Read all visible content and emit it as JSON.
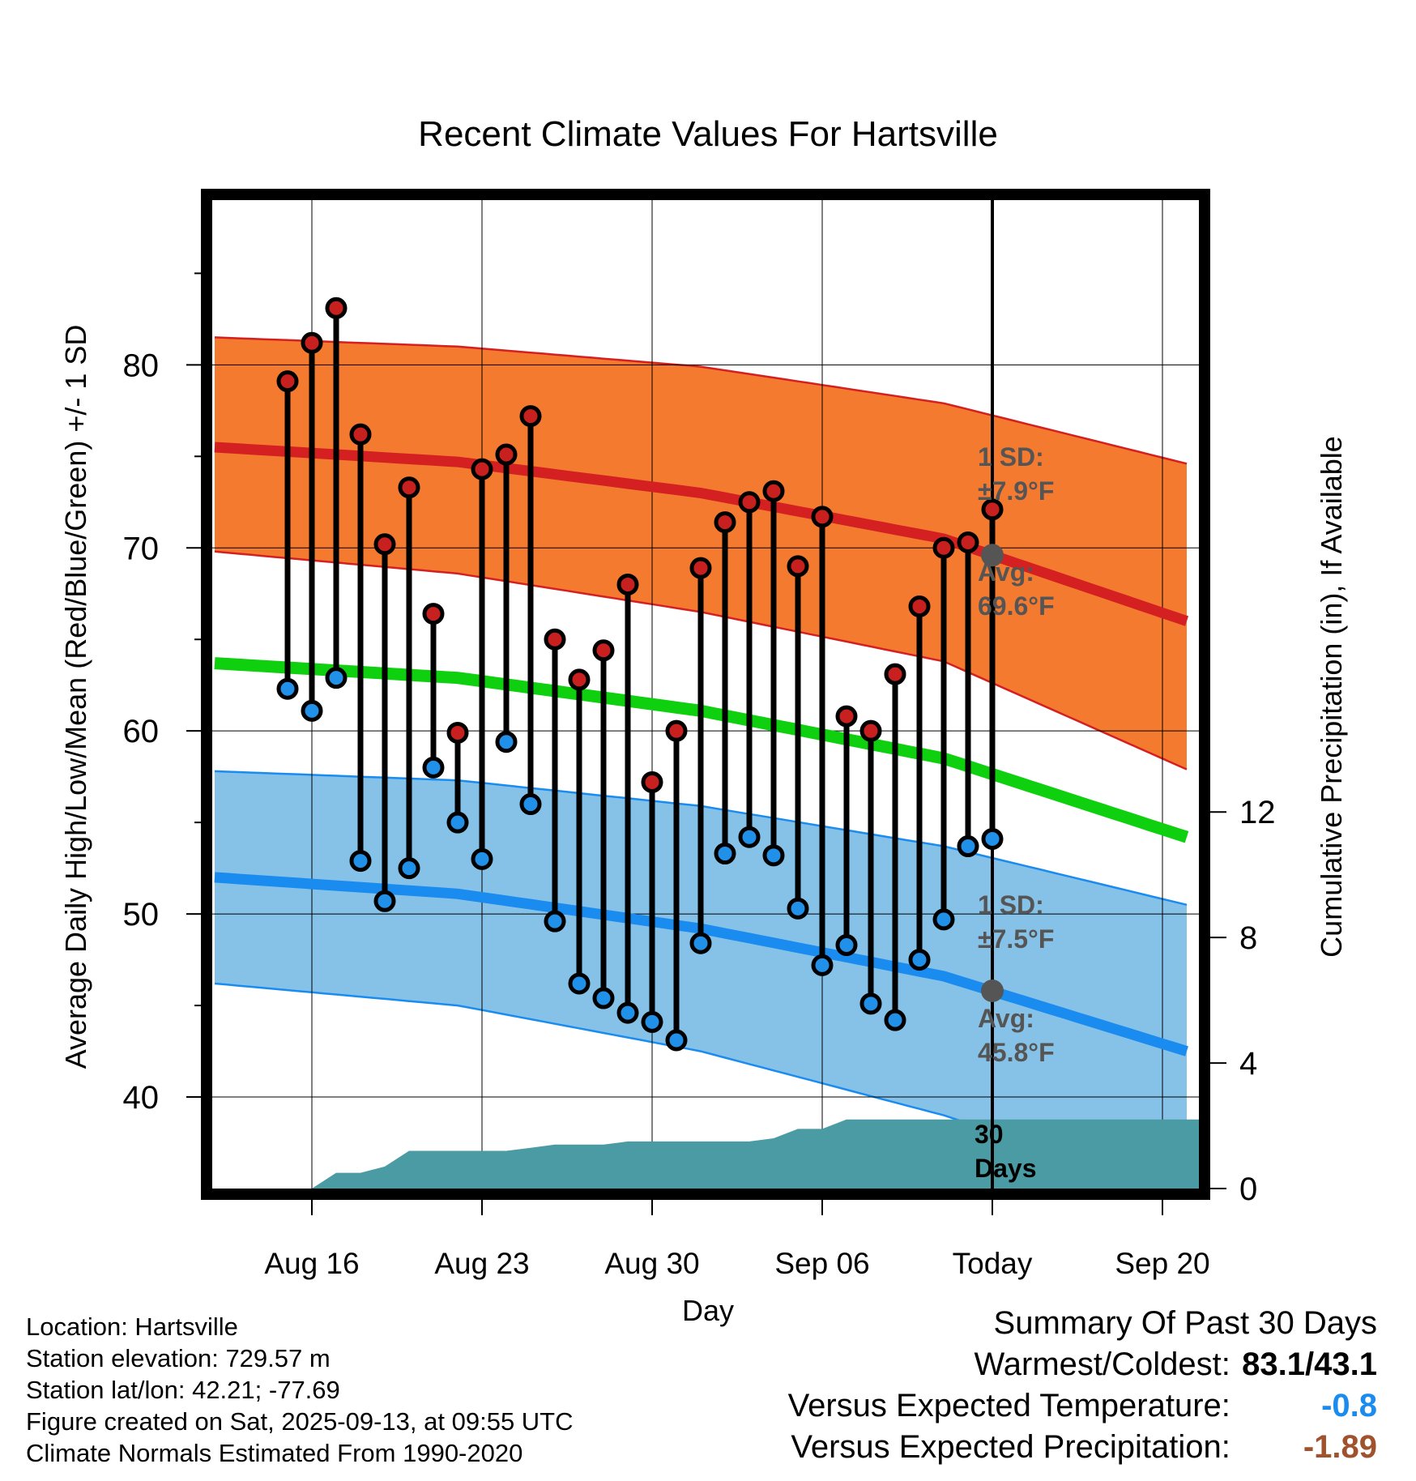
{
  "chart_data": {
    "type": "line",
    "title": "Recent Climate Values For Hartsville",
    "xlabel": "Day",
    "ylabel": "Average Daily High/Low/Mean (Red/Blue/Green) +/- 1 SD",
    "y2label": "Cumulative Precipitation (in), If Available",
    "ylim": [
      35,
      89
    ],
    "y2lim": [
      0,
      31.5
    ],
    "xlim": [
      -2.1,
      38.5
    ],
    "x_tick_positions": [
      2,
      9,
      16,
      23,
      30,
      37
    ],
    "x_tick_labels": [
      "Aug 16",
      "Aug 23",
      "Aug 30",
      "Sep 06",
      "Today",
      "Sep 20"
    ],
    "y_ticks": [
      40,
      50,
      60,
      70,
      80
    ],
    "y_minor_ticks": [
      45,
      55,
      65,
      75,
      85
    ],
    "y2_ticks": [
      0,
      4,
      8,
      12
    ],
    "today_index": 30,
    "days": [
      1,
      2,
      3,
      4,
      5,
      6,
      7,
      8,
      9,
      10,
      11,
      12,
      13,
      14,
      15,
      16,
      17,
      18,
      19,
      20,
      21,
      22,
      23,
      24,
      25,
      26,
      27,
      28,
      29,
      30
    ],
    "highs": [
      79.1,
      81.2,
      83.1,
      76.2,
      70.2,
      73.3,
      66.4,
      59.9,
      74.3,
      75.1,
      77.2,
      65.0,
      62.8,
      64.4,
      68.0,
      57.2,
      60.0,
      68.9,
      71.4,
      72.5,
      73.1,
      69.0,
      71.7,
      60.8,
      60.0,
      63.1,
      66.8,
      70.0,
      70.3,
      72.1
    ],
    "lows": [
      62.3,
      61.1,
      62.9,
      52.9,
      50.7,
      52.5,
      58.0,
      55.0,
      53.0,
      59.4,
      56.0,
      49.6,
      46.2,
      45.4,
      44.6,
      44.1,
      43.1,
      48.4,
      53.3,
      54.2,
      53.2,
      50.3,
      47.2,
      48.3,
      45.1,
      44.2,
      47.5,
      49.7,
      53.7,
      54.1
    ],
    "normal_high_mean": {
      "x": [
        -2,
        8,
        18,
        28,
        38
      ],
      "y": [
        75.5,
        74.7,
        73.0,
        70.5,
        66.0
      ]
    },
    "normal_high_band": {
      "x": [
        -2,
        8,
        18,
        28,
        38
      ],
      "upper": [
        81.5,
        81.0,
        79.9,
        77.9,
        74.6
      ],
      "lower": [
        69.8,
        68.6,
        66.5,
        63.8,
        57.9
      ]
    },
    "normal_mean": {
      "x": [
        -2,
        8,
        18,
        28,
        38
      ],
      "y": [
        63.7,
        62.9,
        61.1,
        58.5,
        54.2
      ]
    },
    "normal_low_mean": {
      "x": [
        -2,
        8,
        18,
        28,
        38
      ],
      "y": [
        52.0,
        51.1,
        49.2,
        46.6,
        42.5
      ]
    },
    "normal_low_band": {
      "x": [
        -2,
        8,
        18,
        28,
        38
      ],
      "upper": [
        57.8,
        57.3,
        55.9,
        53.7,
        50.5
      ],
      "lower": [
        46.2,
        45.0,
        42.5,
        39.0,
        34.6
      ]
    },
    "precip_cumulative": {
      "x": [
        2,
        3,
        4,
        5,
        6,
        7,
        8,
        9,
        10,
        11,
        12,
        13,
        14,
        15,
        16,
        17,
        18,
        19,
        20,
        21,
        22,
        23,
        24,
        25,
        26,
        27,
        28,
        29,
        30,
        31,
        38.5
      ],
      "y": [
        0,
        0.5,
        0.5,
        0.7,
        1.2,
        1.2,
        1.2,
        1.2,
        1.2,
        1.3,
        1.4,
        1.4,
        1.4,
        1.5,
        1.5,
        1.5,
        1.5,
        1.5,
        1.5,
        1.6,
        1.9,
        1.9,
        2.2,
        2.2,
        2.2,
        2.2,
        2.2,
        2.2,
        2.2,
        2.2,
        2.2
      ]
    },
    "colors": {
      "high_band": "#f47a30",
      "high_line": "#d42020",
      "low_band": "#86c2e8",
      "low_line": "#1a8cf0",
      "mean_line": "#0ed00e",
      "precip": "#4a9ba3",
      "high_marker": "#c8201e",
      "low_marker": "#2090e8",
      "annotation": "#555555",
      "today_dot": "#555555"
    },
    "annotations": {
      "high_sd_label": "1 SD:",
      "high_sd_value": "±7.9°F",
      "high_avg_label": "Avg:",
      "high_avg_value": "69.6°F",
      "high_avg": 69.6,
      "low_sd_label": "1 SD:",
      "low_sd_value": "±7.5°F",
      "low_avg_label": "Avg:",
      "low_avg_value": "45.8°F",
      "low_avg": 45.8,
      "days_label_1": "30",
      "days_label_2": "Days"
    }
  },
  "info": {
    "location": "Location: Hartsville",
    "elevation": "Station elevation: 729.57 m",
    "latlon": "Station lat/lon: 42.21; -77.69",
    "created": "Figure created on Sat, 2025-09-13, at 09:55 UTC",
    "normals": "Climate Normals Estimated From 1990-2020"
  },
  "summary": {
    "title": "Summary Of Past 30 Days",
    "warm_cold_label": "Warmest/Coldest:",
    "warm_cold_value": "83.1/43.1",
    "temp_label": "Versus Expected Temperature:",
    "temp_value": "-0.8",
    "temp_color": "#1a8cf0",
    "precip_label": "Versus Expected Precipitation:",
    "precip_value": "-1.89",
    "precip_color": "#a0522d"
  }
}
